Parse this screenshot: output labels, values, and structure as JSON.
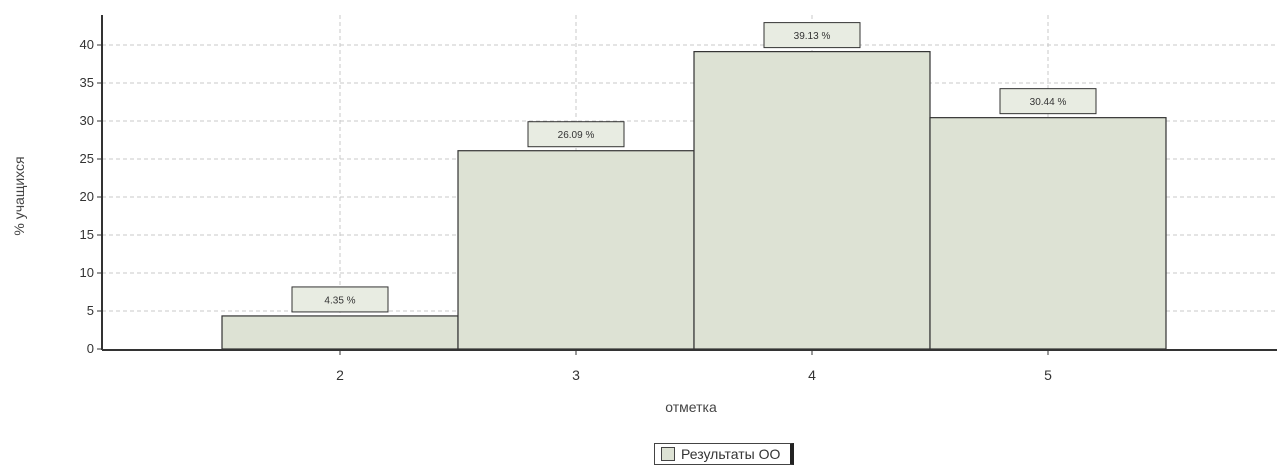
{
  "chart_data": {
    "type": "bar",
    "categories": [
      "2",
      "3",
      "4",
      "5"
    ],
    "series": [
      {
        "name": "Результаты ОО",
        "values": [
          4.35,
          26.09,
          39.13,
          30.44
        ]
      }
    ],
    "data_labels": [
      "4.35 %",
      "26.09 %",
      "39.13 %",
      "30.44 %"
    ],
    "xlabel": "отметка",
    "ylabel": "% учащихся",
    "ylim": [
      0,
      40
    ],
    "yticks": [
      0,
      5,
      10,
      15,
      20,
      25,
      30,
      35,
      40
    ],
    "grid": true,
    "legend_position": "bottom-center",
    "colors": {
      "bar_fill": "#dde2d4",
      "bar_stroke": "#333333",
      "grid": "#c8c8c8",
      "axis": "#333333"
    }
  },
  "legend": {
    "label": "Результаты ОО"
  }
}
